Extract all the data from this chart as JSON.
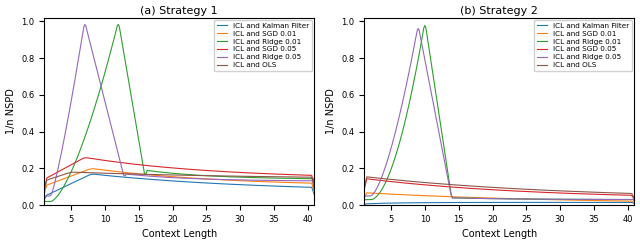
{
  "subplot_titles": [
    "(a) Strategy 1",
    "(b) Strategy 2"
  ],
  "xlabel": "Context Length",
  "ylabel": "1/n NSPD",
  "xlim": [
    1,
    41
  ],
  "ylim": [
    0.0,
    1.02
  ],
  "xticks": [
    5,
    10,
    15,
    20,
    25,
    30,
    35,
    40
  ],
  "yticks": [
    0.0,
    0.2,
    0.4,
    0.6,
    0.8,
    1.0
  ],
  "legend_labels": [
    "ICL and Kalman Filter",
    "ICL and SGD 0.01",
    "ICL and Ridge 0.01",
    "ICL and SGD 0.05",
    "ICL and Ridge 0.05",
    "ICL and OLS"
  ],
  "line_colors": [
    "#1f77b4",
    "#ff7f0e",
    "#2ca02c",
    "#d62728",
    "#9467bd",
    "#8c564b"
  ],
  "figsize": [
    6.4,
    2.45
  ],
  "dpi": 100
}
